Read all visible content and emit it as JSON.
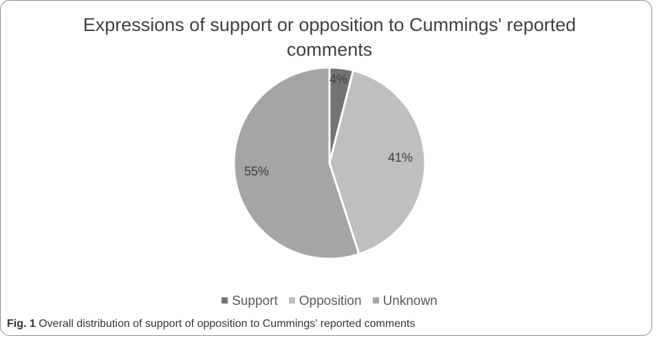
{
  "chart_data": {
    "type": "pie",
    "title": "Expressions of support or opposition to Cummings' reported comments",
    "categories": [
      "Support",
      "Opposition",
      "Unknown"
    ],
    "values": [
      4,
      41,
      55
    ],
    "labels": [
      "4%",
      "41%",
      "55%"
    ],
    "colors": [
      "#737373",
      "#bfbfbf",
      "#a5a5a5"
    ],
    "legend_position": "bottom"
  },
  "caption": {
    "label": "Fig. 1",
    "text": "Overall distribution of support of opposition to Cummings’ reported comments"
  }
}
